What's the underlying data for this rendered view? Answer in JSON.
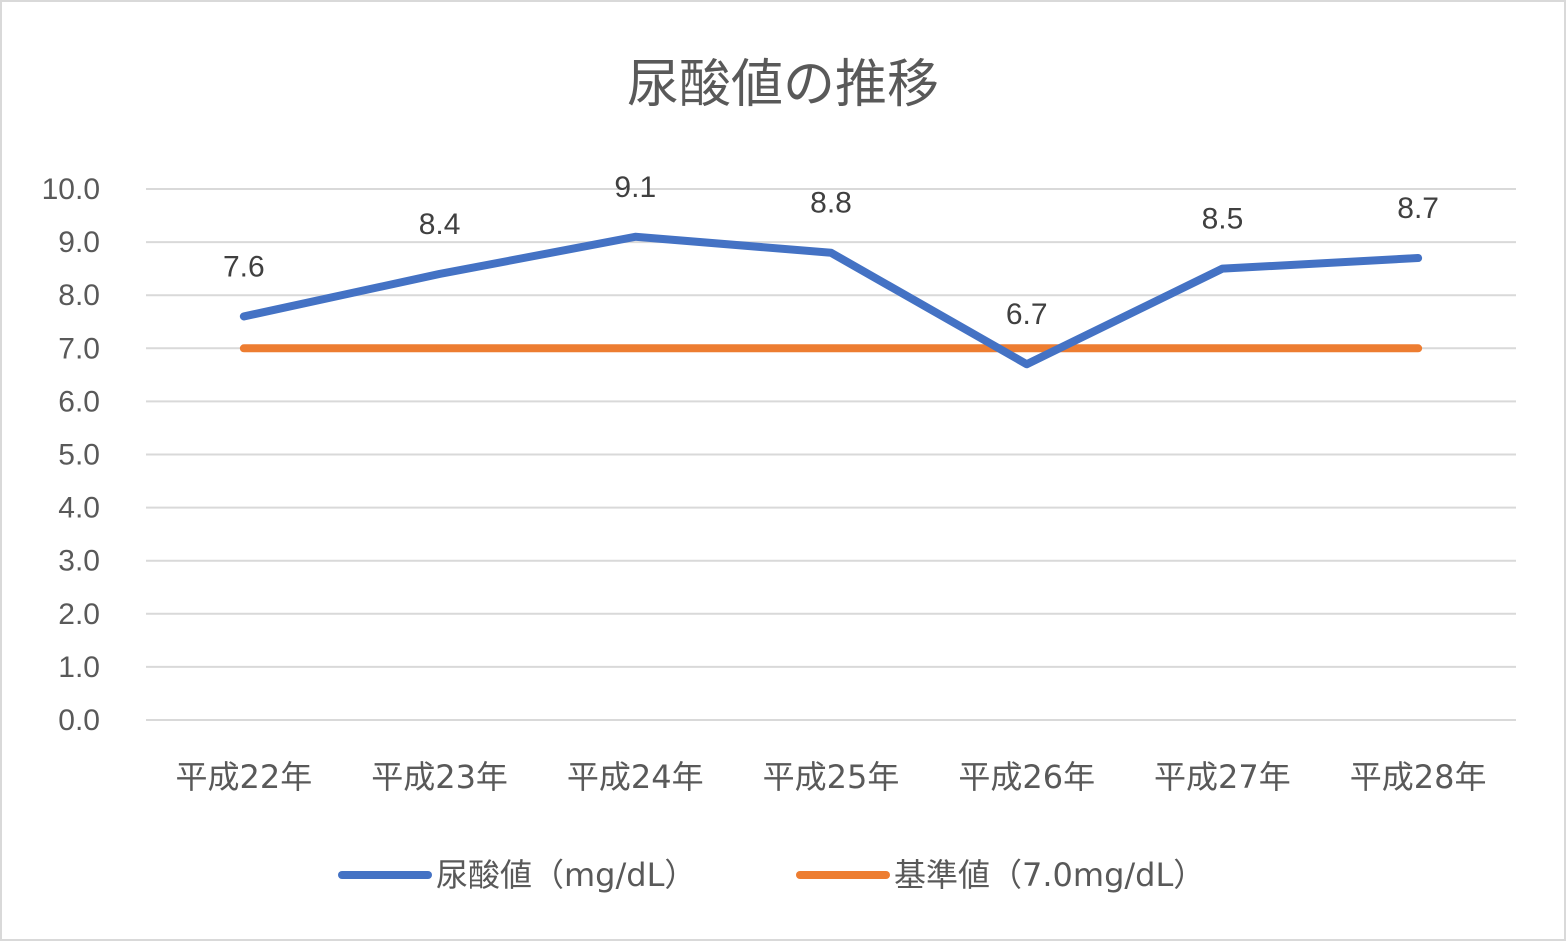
{
  "chart_data": {
    "type": "line",
    "title": "尿酸値の推移",
    "categories": [
      "平成22年",
      "平成23年",
      "平成24年",
      "平成25年",
      "平成26年",
      "平成27年",
      "平成28年"
    ],
    "yticks": [
      "0.0",
      "1.0",
      "2.0",
      "3.0",
      "4.0",
      "5.0",
      "6.0",
      "7.0",
      "8.0",
      "9.0",
      "10.0"
    ],
    "ylim": [
      0,
      10
    ],
    "grid": true,
    "legend_position": "bottom",
    "series": [
      {
        "name": "尿酸値（mg/dL）",
        "values": [
          7.6,
          8.4,
          9.1,
          8.8,
          6.7,
          8.5,
          8.7
        ],
        "labels": [
          "7.6",
          "8.4",
          "9.1",
          "8.8",
          "6.7",
          "8.5",
          "8.7"
        ],
        "color": "#4472c4"
      },
      {
        "name": "基準値（7.0mg/dL）",
        "values": [
          7.0,
          7.0,
          7.0,
          7.0,
          7.0,
          7.0,
          7.0
        ],
        "color": "#ed7d31"
      }
    ]
  }
}
